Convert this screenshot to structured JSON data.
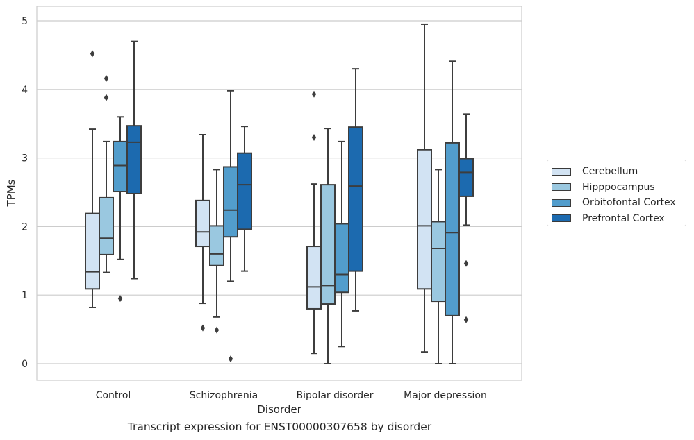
{
  "chart_data": {
    "type": "box",
    "title": "",
    "caption": "Transcript expression for ENST00000307658 by disorder",
    "xlabel": "Disorder",
    "ylabel": "TPMs",
    "ylim": [
      -0.24,
      5.2
    ],
    "yticks": [
      0,
      1,
      2,
      3,
      4,
      5
    ],
    "grid": true,
    "legend_position": "right",
    "categories": [
      "Control",
      "Schizophrenia",
      "Bipolar disorder",
      "Major depression"
    ],
    "series": [
      {
        "name": "Cerebellum",
        "color": "#d2e3f3",
        "boxes": [
          {
            "whislo": 0.82,
            "q1": 1.09,
            "med": 1.34,
            "q3": 2.19,
            "whishi": 3.42,
            "fliers": [
              4.52
            ]
          },
          {
            "whislo": 0.88,
            "q1": 1.71,
            "med": 1.92,
            "q3": 2.38,
            "whishi": 3.34,
            "fliers": [
              0.52
            ]
          },
          {
            "whislo": 0.15,
            "q1": 0.8,
            "med": 1.12,
            "q3": 1.71,
            "whishi": 2.62,
            "fliers": [
              3.93,
              3.3
            ]
          },
          {
            "whislo": 0.17,
            "q1": 1.09,
            "med": 2.01,
            "q3": 3.12,
            "whishi": 4.95,
            "fliers": []
          }
        ]
      },
      {
        "name": "Hipppocampus",
        "color": "#9ac8e0",
        "boxes": [
          {
            "whislo": 1.33,
            "q1": 1.59,
            "med": 1.83,
            "q3": 2.42,
            "whishi": 3.24,
            "fliers": [
              4.16,
              3.88
            ]
          },
          {
            "whislo": 0.68,
            "q1": 1.43,
            "med": 1.6,
            "q3": 2.01,
            "whishi": 2.83,
            "fliers": [
              0.49
            ]
          },
          {
            "whislo": 0.0,
            "q1": 0.87,
            "med": 1.14,
            "q3": 2.61,
            "whishi": 3.43,
            "fliers": []
          },
          {
            "whislo": 0.0,
            "q1": 0.91,
            "med": 1.68,
            "q3": 2.07,
            "whishi": 2.83,
            "fliers": []
          }
        ]
      },
      {
        "name": "Orbitofontal Cortex",
        "color": "#529dcc",
        "boxes": [
          {
            "whislo": 1.52,
            "q1": 2.51,
            "med": 2.89,
            "q3": 3.24,
            "whishi": 3.6,
            "fliers": [
              0.95
            ]
          },
          {
            "whislo": 1.2,
            "q1": 1.85,
            "med": 2.24,
            "q3": 2.87,
            "whishi": 3.98,
            "fliers": [
              0.07
            ]
          },
          {
            "whislo": 0.25,
            "q1": 1.04,
            "med": 1.3,
            "q3": 2.04,
            "whishi": 3.24,
            "fliers": []
          },
          {
            "whislo": 0.0,
            "q1": 0.7,
            "med": 1.91,
            "q3": 3.22,
            "whishi": 4.41,
            "fliers": []
          }
        ]
      },
      {
        "name": "Prefrontal Cortex",
        "color": "#1c6aaf",
        "boxes": [
          {
            "whislo": 1.24,
            "q1": 2.48,
            "med": 3.23,
            "q3": 3.47,
            "whishi": 4.7,
            "fliers": []
          },
          {
            "whislo": 1.35,
            "q1": 1.96,
            "med": 2.61,
            "q3": 3.07,
            "whishi": 3.46,
            "fliers": []
          },
          {
            "whislo": 0.77,
            "q1": 1.35,
            "med": 2.59,
            "q3": 3.45,
            "whishi": 4.3,
            "fliers": []
          },
          {
            "whislo": 2.02,
            "q1": 2.44,
            "med": 2.79,
            "q3": 2.99,
            "whishi": 3.64,
            "fliers": [
              1.46,
              0.64
            ]
          }
        ]
      }
    ]
  }
}
